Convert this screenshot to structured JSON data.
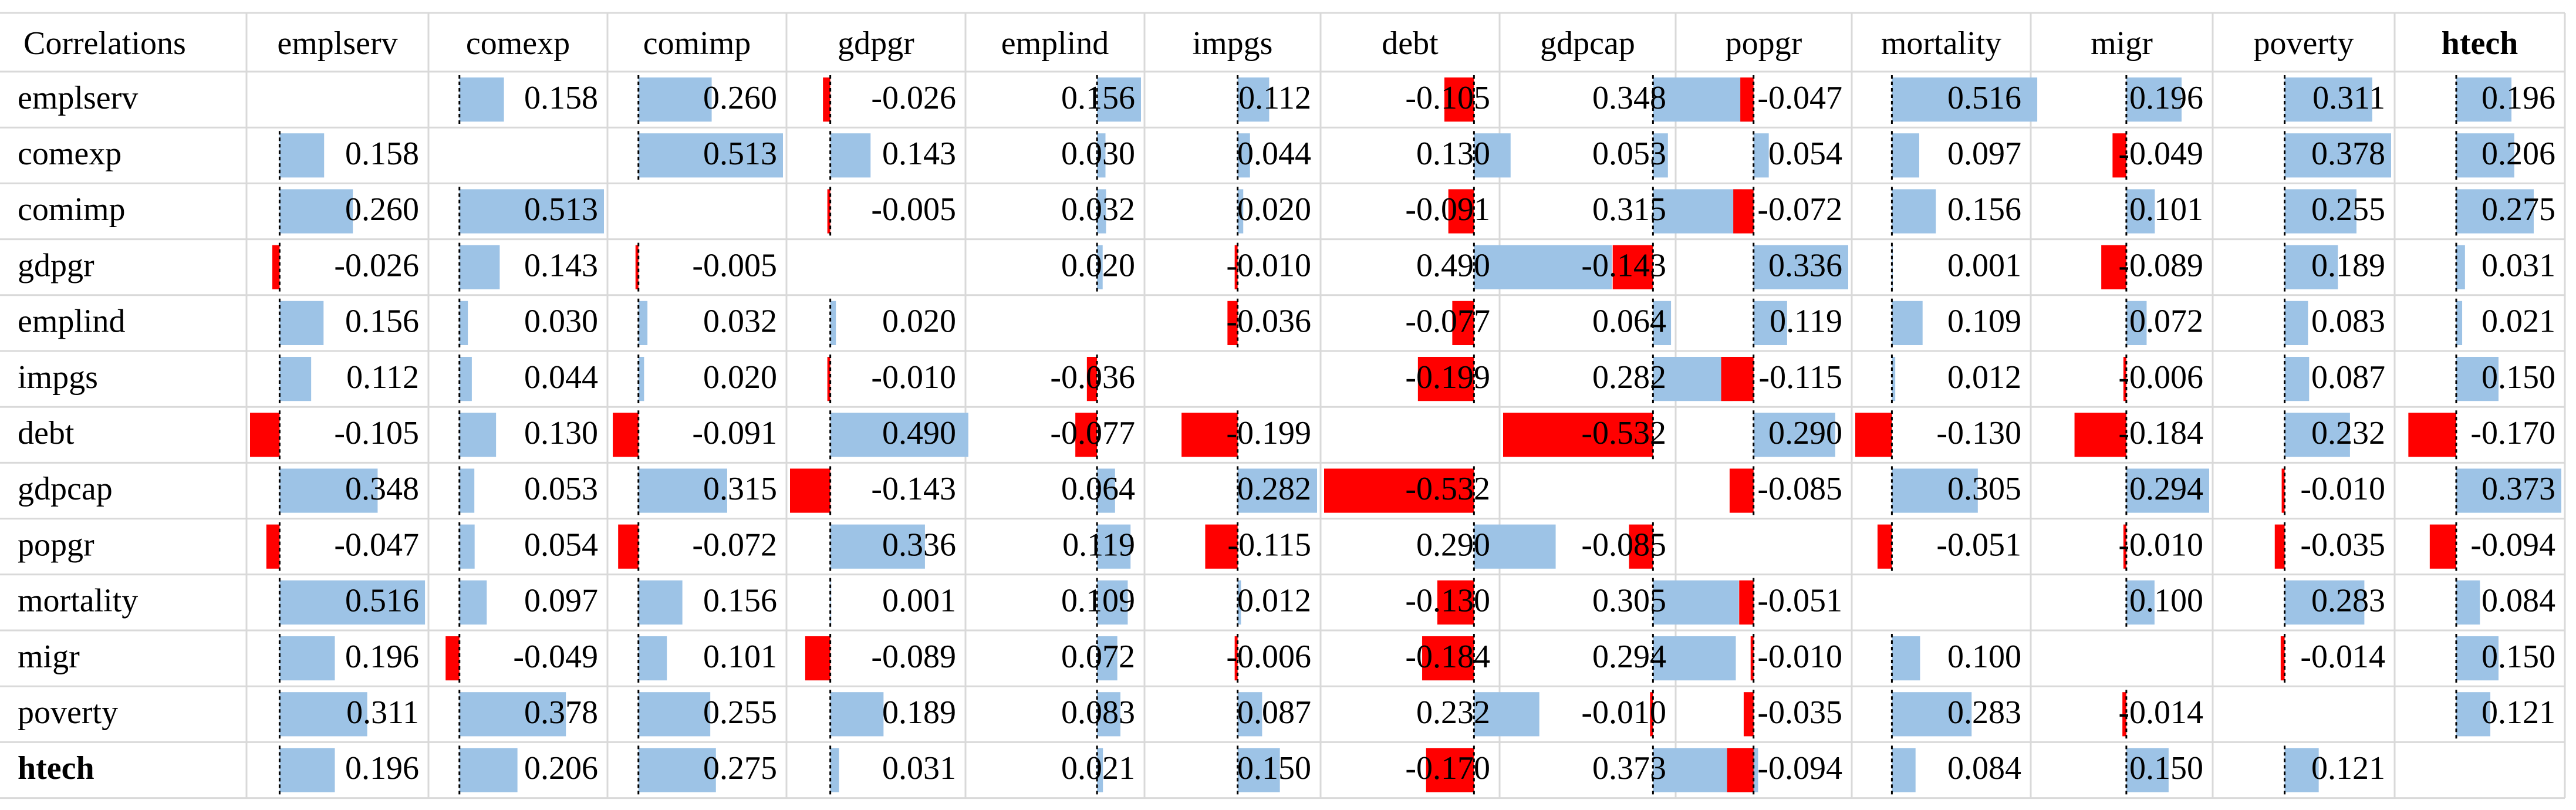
{
  "chart_data": {
    "type": "heatmap",
    "title": "",
    "corner_label": "Correlations",
    "columns": [
      "emplserv",
      "comexp",
      "comimp",
      "gdpgr",
      "emplind",
      "impgs",
      "debt",
      "gdpcap",
      "popgr",
      "mortality",
      "migr",
      "poverty",
      "htech"
    ],
    "rows": [
      "emplserv",
      "comexp",
      "comimp",
      "gdpgr",
      "emplind",
      "impgs",
      "debt",
      "gdpcap",
      "popgr",
      "mortality",
      "migr",
      "poverty",
      "htech"
    ],
    "bold_labels": [
      "htech"
    ],
    "values": [
      [
        null,
        0.158,
        0.26,
        -0.026,
        0.156,
        0.112,
        -0.105,
        0.348,
        -0.047,
        0.516,
        0.196,
        0.311,
        0.196
      ],
      [
        0.158,
        null,
        0.513,
        0.143,
        0.03,
        0.044,
        0.13,
        0.053,
        0.054,
        0.097,
        -0.049,
        0.378,
        0.206
      ],
      [
        0.26,
        0.513,
        null,
        -0.005,
        0.032,
        0.02,
        -0.091,
        0.315,
        -0.072,
        0.156,
        0.101,
        0.255,
        0.275
      ],
      [
        -0.026,
        0.143,
        -0.005,
        null,
        0.02,
        -0.01,
        0.49,
        -0.143,
        0.336,
        0.001,
        -0.089,
        0.189,
        0.031
      ],
      [
        0.156,
        0.03,
        0.032,
        0.02,
        null,
        -0.036,
        -0.077,
        0.064,
        0.119,
        0.109,
        0.072,
        0.083,
        0.021
      ],
      [
        0.112,
        0.044,
        0.02,
        -0.01,
        -0.036,
        null,
        -0.199,
        0.282,
        -0.115,
        0.012,
        -0.006,
        0.087,
        0.15
      ],
      [
        -0.105,
        0.13,
        -0.091,
        0.49,
        -0.077,
        -0.199,
        null,
        -0.532,
        0.29,
        -0.13,
        -0.184,
        0.232,
        -0.17
      ],
      [
        0.348,
        0.053,
        0.315,
        -0.143,
        0.064,
        0.282,
        -0.532,
        null,
        -0.085,
        0.305,
        0.294,
        -0.01,
        0.373
      ],
      [
        -0.047,
        0.054,
        -0.072,
        0.336,
        0.119,
        -0.115,
        0.29,
        -0.085,
        null,
        -0.051,
        -0.01,
        -0.035,
        -0.094
      ],
      [
        0.516,
        0.097,
        0.156,
        0.001,
        0.109,
        0.012,
        -0.13,
        0.305,
        -0.051,
        null,
        0.1,
        0.283,
        0.084
      ],
      [
        0.196,
        -0.049,
        0.101,
        -0.089,
        0.072,
        -0.006,
        -0.184,
        0.294,
        -0.01,
        0.1,
        null,
        -0.014,
        0.15
      ],
      [
        0.311,
        0.378,
        0.255,
        0.189,
        0.083,
        0.087,
        0.232,
        -0.01,
        -0.035,
        0.283,
        -0.014,
        null,
        0.121
      ],
      [
        0.196,
        0.206,
        0.275,
        0.031,
        0.021,
        0.15,
        -0.17,
        0.373,
        -0.094,
        0.084,
        0.15,
        0.121,
        null
      ]
    ],
    "positive_color": "#9DC3E6",
    "negative_color": "#FF0000",
    "grid": true
  }
}
